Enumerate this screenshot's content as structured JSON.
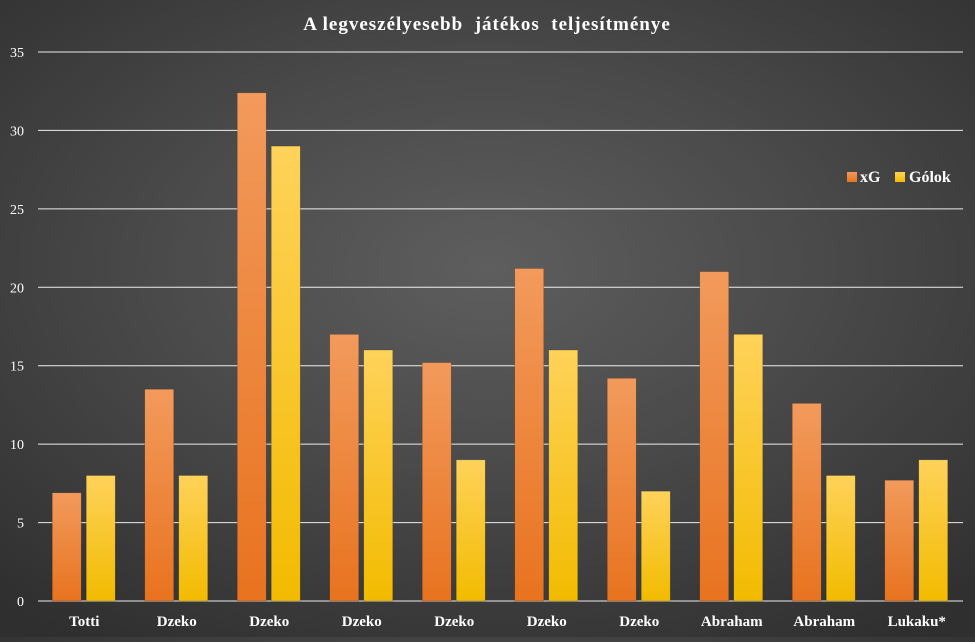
{
  "chart_data": {
    "type": "bar",
    "title": "A legveszélyesebb  játékos  teljesítménye",
    "categories": [
      "Totti",
      "Dzeko",
      "Dzeko",
      "Dzeko",
      "Dzeko",
      "Dzeko",
      "Dzeko",
      "Abraham",
      "Abraham",
      "Lukaku*"
    ],
    "series": [
      {
        "name": "xG",
        "values": [
          6.9,
          13.5,
          32.4,
          17.0,
          15.2,
          21.2,
          14.2,
          21.0,
          12.6,
          7.7
        ],
        "color_top": "#f29a5c",
        "color_bottom": "#e8731f"
      },
      {
        "name": "Gólok",
        "values": [
          8,
          8,
          29,
          16,
          9,
          16,
          7,
          17,
          8,
          9
        ],
        "color_top": "#ffd25a",
        "color_bottom": "#f2bb00"
      }
    ],
    "ylim": [
      0,
      35
    ],
    "yticks": [
      0,
      5,
      10,
      15,
      20,
      25,
      30,
      35
    ],
    "grid": true,
    "legend_position": "right",
    "colors": {
      "axis_text": "#ffffff",
      "gridline": "#ffffff"
    }
  }
}
